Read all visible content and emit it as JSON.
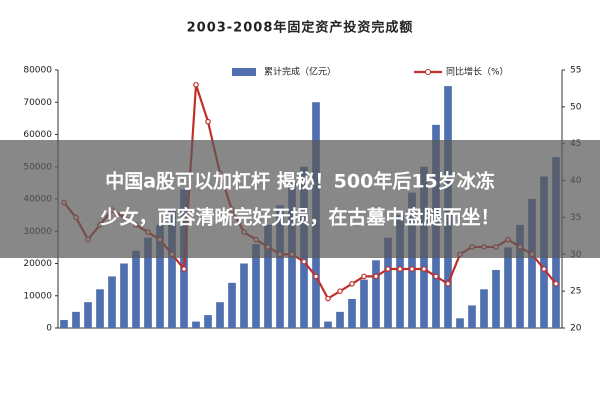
{
  "chart_data": {
    "type": "bar-line",
    "title": "2003-2008年固定资产投资完成额",
    "categories": [
      null,
      null,
      null,
      null,
      null,
      null,
      null,
      null,
      null,
      null,
      null,
      null,
      null,
      null,
      null,
      null,
      null,
      null,
      null,
      null,
      null,
      null,
      null,
      null,
      null,
      null,
      null,
      null,
      null,
      null,
      null,
      null,
      null,
      null,
      null,
      null,
      null,
      null,
      null,
      null,
      null,
      null
    ],
    "series": [
      {
        "name": "累计完成（亿元）",
        "color": "#4f6fae",
        "type": "bar",
        "values": [
          2500,
          5000,
          8000,
          12000,
          16000,
          20000,
          24000,
          28000,
          32000,
          37000,
          43000,
          2000,
          4000,
          8000,
          14000,
          20000,
          26000,
          32000,
          38000,
          45000,
          50000,
          70000,
          2000,
          5000,
          9000,
          15000,
          21000,
          28000,
          35000,
          42000,
          50000,
          63000,
          75000,
          3000,
          7000,
          12000,
          18000,
          25000,
          32000,
          40000,
          47000,
          53000
        ]
      },
      {
        "name": "同比增长（%）",
        "color": "#c0302a",
        "type": "line",
        "axis": "y2",
        "values": [
          37,
          35,
          32,
          34,
          36,
          35,
          34,
          33,
          32,
          30,
          28,
          53,
          48,
          41,
          36,
          33,
          32,
          31,
          30,
          30,
          29,
          27,
          24,
          25,
          26,
          27,
          27,
          28,
          28,
          28,
          28,
          27,
          26,
          30,
          31,
          31,
          31,
          32,
          31,
          30,
          28,
          26
        ]
      }
    ],
    "ylim": [
      0,
      80000
    ],
    "yticks": [
      0,
      10000,
      20000,
      30000,
      40000,
      50000,
      60000,
      70000,
      80000
    ],
    "y2lim": [
      20,
      55
    ],
    "y2ticks": [
      20,
      25,
      30,
      35,
      40,
      45,
      50,
      55
    ],
    "legend": "top"
  },
  "banner": {
    "text": [
      "中国a股可以加杠杆 揭秘！500年后15岁冰冻",
      "少女，面容清晰完好无损，在古墓中盘腿而坐！"
    ]
  }
}
